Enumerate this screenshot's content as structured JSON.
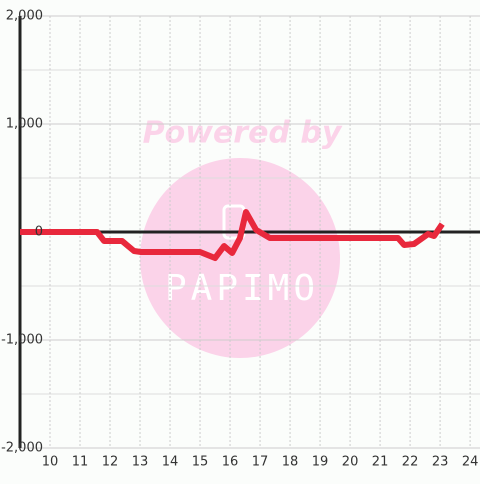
{
  "chart_data": {
    "type": "line",
    "watermark": "Powered by",
    "watermark_logo": "PAPIMO",
    "x": [
      9.0,
      11.57,
      11.8,
      12.4,
      12.8,
      13.03,
      15.0,
      15.5,
      15.8,
      16.07,
      16.33,
      16.53,
      16.87,
      17.33,
      21.6,
      21.8,
      22.13,
      22.6,
      22.8,
      23.07
    ],
    "series": [
      {
        "color": "#e8283c",
        "values": [
          0,
          0,
          -83,
          -83,
          -176,
          -185,
          -185,
          -241,
          -130,
          -194,
          -56,
          185,
          19,
          -56,
          -56,
          -120,
          -111,
          -19,
          -37,
          74
        ]
      }
    ],
    "xlim": [
      9,
      24.33
    ],
    "ylim": [
      -2000,
      2000
    ],
    "xticks": [
      10,
      11,
      12,
      13,
      14,
      15,
      16,
      17,
      18,
      19,
      20,
      21,
      22,
      23,
      24
    ],
    "yticks": [
      {
        "value": -2000,
        "label": "-2,000"
      },
      {
        "value": -1000,
        "label": "-1,000"
      },
      0,
      {
        "value": 1000,
        "label": "1,000"
      },
      {
        "value": 2000,
        "label": "2,000"
      }
    ],
    "grid": true
  }
}
